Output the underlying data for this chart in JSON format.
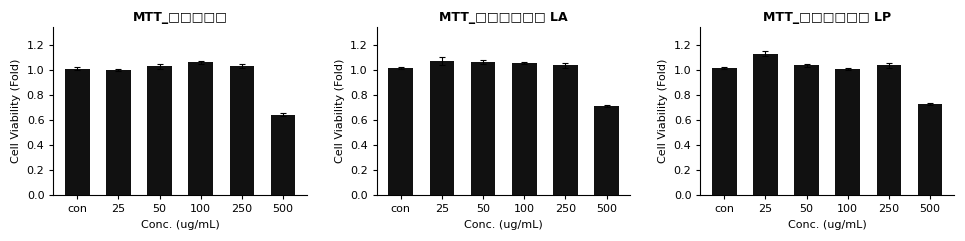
{
  "charts": [
    {
      "title": "MTT_□□□□□",
      "categories": [
        "con",
        "25",
        "50",
        "100",
        "250",
        "500"
      ],
      "values": [
        1.015,
        1.005,
        1.035,
        1.065,
        1.035,
        0.645
      ],
      "errors": [
        0.01,
        0.01,
        0.02,
        0.01,
        0.015,
        0.01
      ]
    },
    {
      "title": "MTT_□□□□□□ LA",
      "categories": [
        "con",
        "25",
        "50",
        "100",
        "250",
        "500"
      ],
      "values": [
        1.02,
        1.075,
        1.07,
        1.06,
        1.04,
        0.715
      ],
      "errors": [
        0.008,
        0.03,
        0.015,
        0.008,
        0.02,
        0.01
      ]
    },
    {
      "title": "MTT_□□□□□□ LP",
      "categories": [
        "con",
        "25",
        "50",
        "100",
        "250",
        "500"
      ],
      "values": [
        1.02,
        1.135,
        1.04,
        1.01,
        1.04,
        0.73
      ],
      "errors": [
        0.008,
        0.02,
        0.015,
        0.008,
        0.02,
        0.01
      ]
    }
  ],
  "bar_color": "#111111",
  "bar_width": 0.6,
  "ylabel": "Cell Viability (Fold)",
  "xlabel": "Conc. (ug/mL)",
  "ylim": [
    0.0,
    1.35
  ],
  "yticks": [
    0.0,
    0.2,
    0.4,
    0.6,
    0.8,
    1.0,
    1.2
  ],
  "title_fontsize": 9,
  "axis_fontsize": 8,
  "tick_fontsize": 8,
  "background_color": "#ffffff",
  "spine_color": "#000000"
}
